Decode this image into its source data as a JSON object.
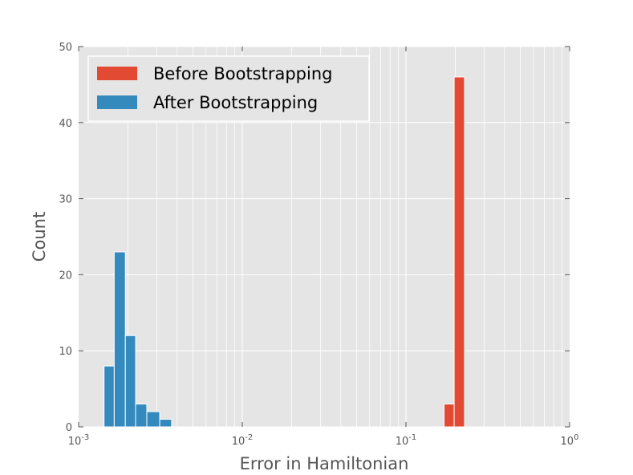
{
  "chart_data": {
    "type": "bar",
    "title": "",
    "xlabel": "Error in Hamiltonian",
    "ylabel": "Count",
    "xscale": "log",
    "xlim": [
      0.001,
      1
    ],
    "ylim": [
      0,
      50
    ],
    "grid": true,
    "legend_position": "top-left",
    "x_ticks": [
      {
        "value": 0.001,
        "base": "10",
        "exp": "-3"
      },
      {
        "value": 0.01,
        "base": "10",
        "exp": "-2"
      },
      {
        "value": 0.1,
        "base": "10",
        "exp": "-1"
      },
      {
        "value": 1,
        "base": "10",
        "exp": "0"
      }
    ],
    "y_ticks": [
      "0",
      "10",
      "20",
      "30",
      "40",
      "50"
    ],
    "series": [
      {
        "name": "Before Bootstrapping",
        "color": "#E24A33",
        "bins": [
          {
            "x0": 0.171,
            "x1": 0.197,
            "count": 3
          },
          {
            "x0": 0.197,
            "x1": 0.228,
            "count": 46
          }
        ]
      },
      {
        "name": "After Bootstrapping",
        "color": "#348ABD",
        "bins": [
          {
            "x0": 0.00143,
            "x1": 0.00165,
            "count": 8
          },
          {
            "x0": 0.00165,
            "x1": 0.00193,
            "count": 23
          },
          {
            "x0": 0.00193,
            "x1": 0.00223,
            "count": 12
          },
          {
            "x0": 0.00223,
            "x1": 0.00261,
            "count": 3
          },
          {
            "x0": 0.00261,
            "x1": 0.00313,
            "count": 2
          },
          {
            "x0": 0.00313,
            "x1": 0.0037,
            "count": 1
          }
        ]
      }
    ]
  }
}
